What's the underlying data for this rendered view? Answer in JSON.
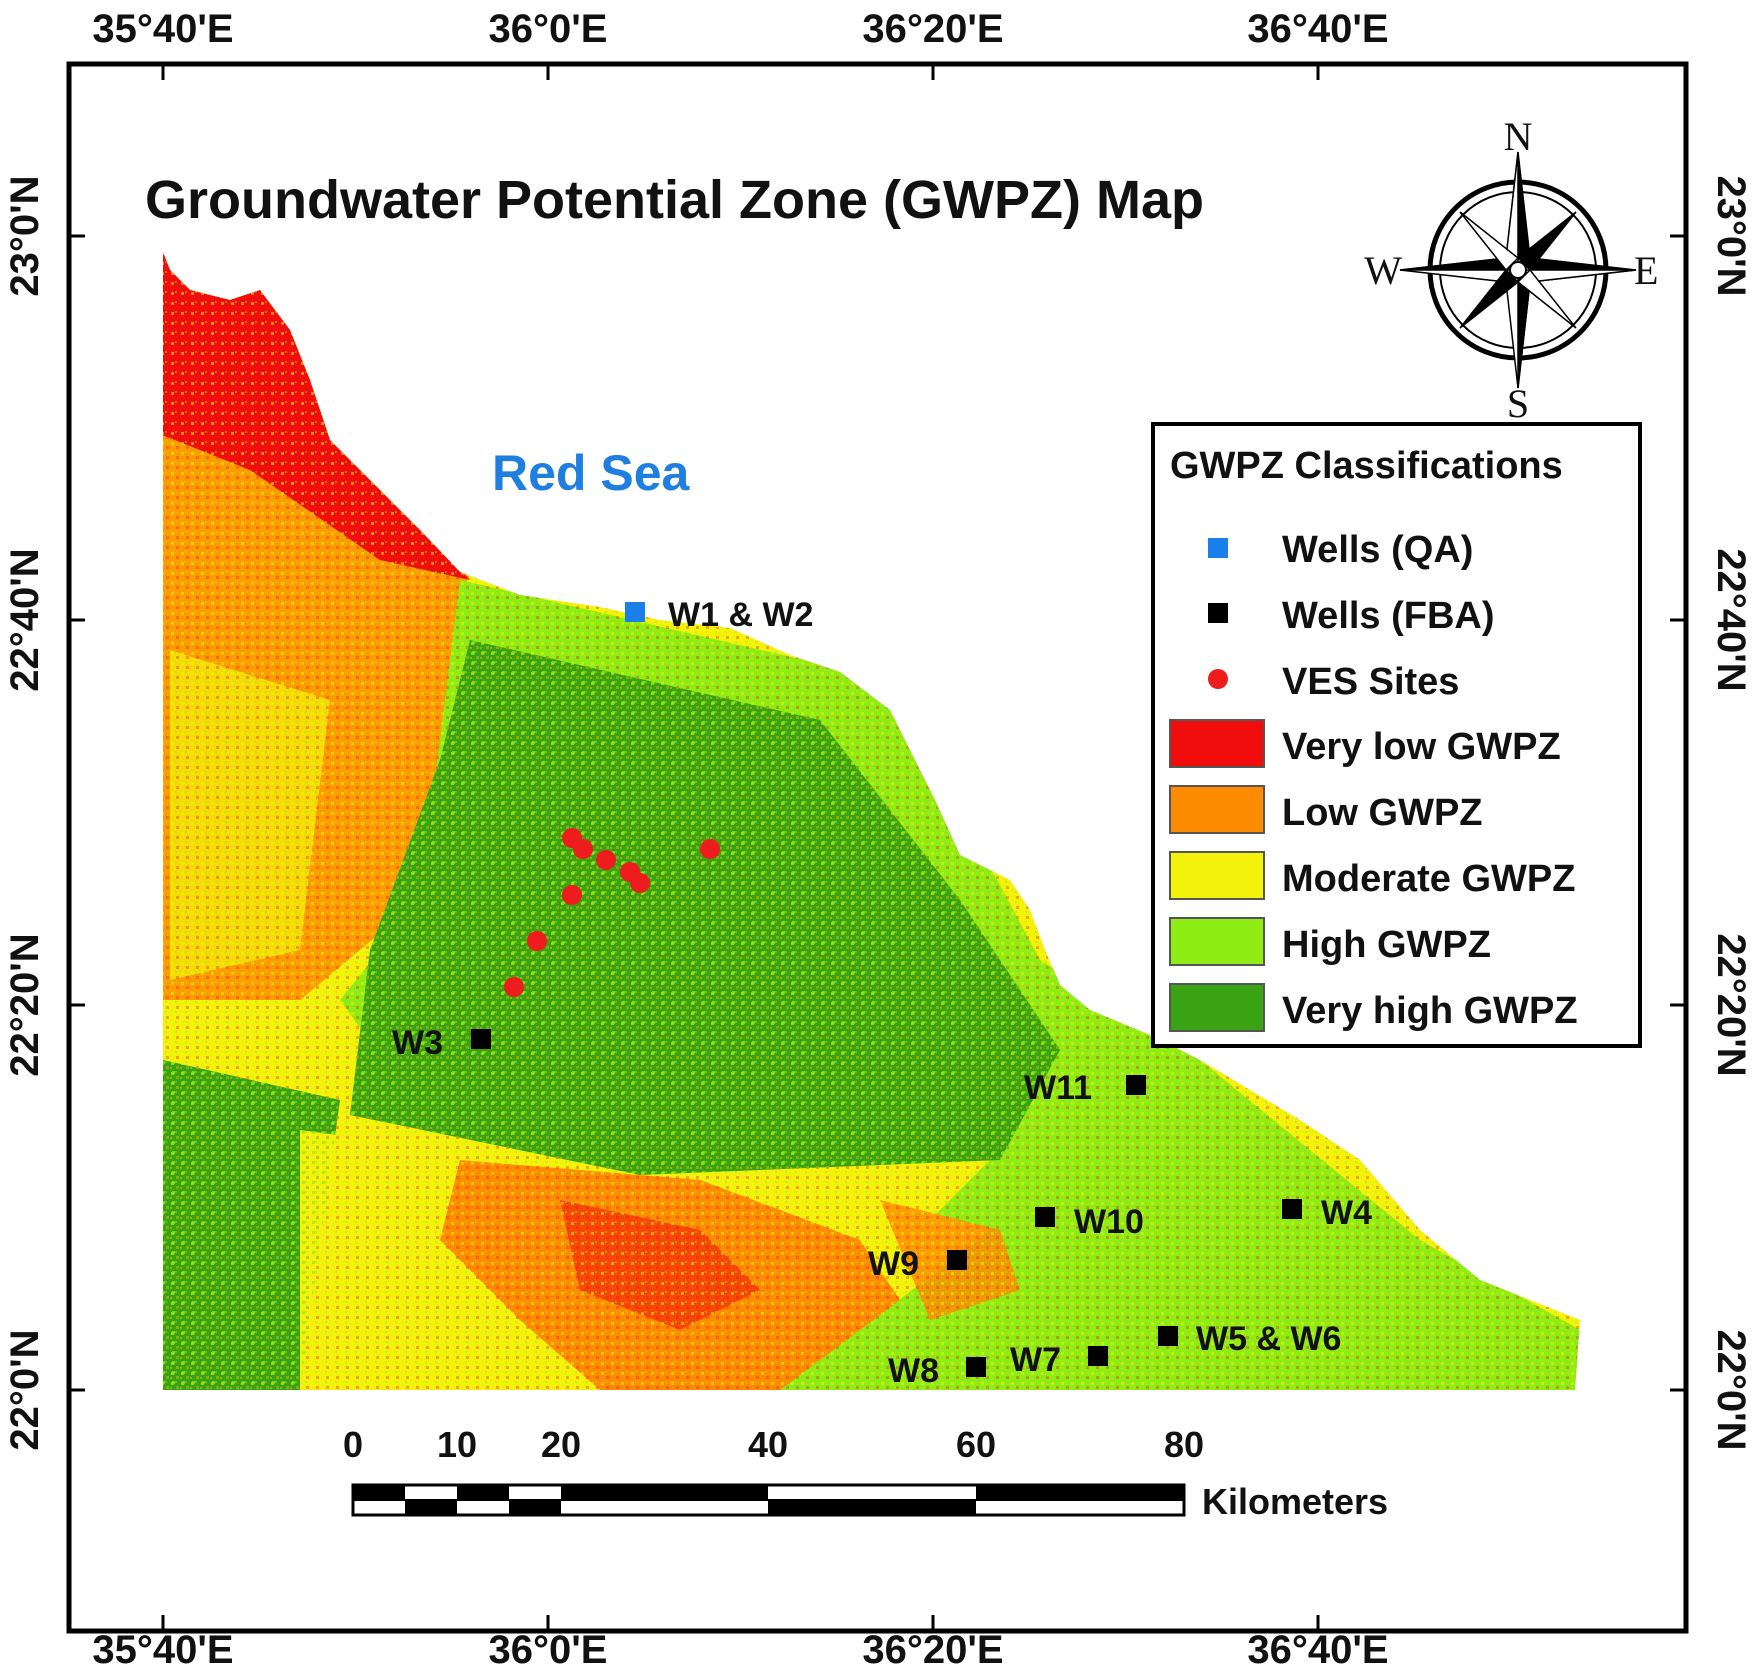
{
  "title": "Groundwater Potential Zone (GWPZ) Map",
  "sea_label": "Red Sea",
  "longitude_labels": [
    "35°40'E",
    "36°0'E",
    "36°20'E",
    "36°40'E"
  ],
  "latitude_labels": [
    "23°0'N",
    "22°40'N",
    "22°20'N",
    "22°0'N"
  ],
  "compass": {
    "n": "N",
    "s": "S",
    "e": "E",
    "w": "W"
  },
  "legend": {
    "title": "GWPZ Classifications",
    "items": [
      {
        "label": "Wells (QA)",
        "symbol": "square",
        "color": "#1a7fe8"
      },
      {
        "label": "Wells (FBA)",
        "symbol": "square",
        "color": "#000000"
      },
      {
        "label": "VES Sites",
        "symbol": "circle",
        "color": "#ee1c1c"
      },
      {
        "label": "Very low GWPZ",
        "symbol": "box",
        "color": "#f20d0d"
      },
      {
        "label": "Low GWPZ",
        "symbol": "box",
        "color": "#ff8c00"
      },
      {
        "label": "Moderate GWPZ",
        "symbol": "box",
        "color": "#f2f20a"
      },
      {
        "label": "High GWPZ",
        "symbol": "box",
        "color": "#8fec14"
      },
      {
        "label": "Very high GWPZ",
        "symbol": "box",
        "color": "#3aa313"
      }
    ]
  },
  "wells": [
    {
      "label": "W1 & W2",
      "type": "QA"
    },
    {
      "label": "W3",
      "type": "FBA"
    },
    {
      "label": "W11",
      "type": "FBA"
    },
    {
      "label": "W10",
      "type": "FBA"
    },
    {
      "label": "W4",
      "type": "FBA"
    },
    {
      "label": "W9",
      "type": "FBA"
    },
    {
      "label": "W5 & W6",
      "type": "FBA"
    },
    {
      "label": "W7",
      "type": "FBA"
    },
    {
      "label": "W8",
      "type": "FBA"
    }
  ],
  "scale_bar": {
    "ticks": [
      "0",
      "10",
      "20",
      "40",
      "60",
      "80"
    ],
    "unit": "Kilometers"
  },
  "colors": {
    "very_low": "#f20d0d",
    "low": "#ff8c00",
    "moderate": "#f2f20a",
    "high": "#8fec14",
    "very_high": "#3aa313"
  }
}
